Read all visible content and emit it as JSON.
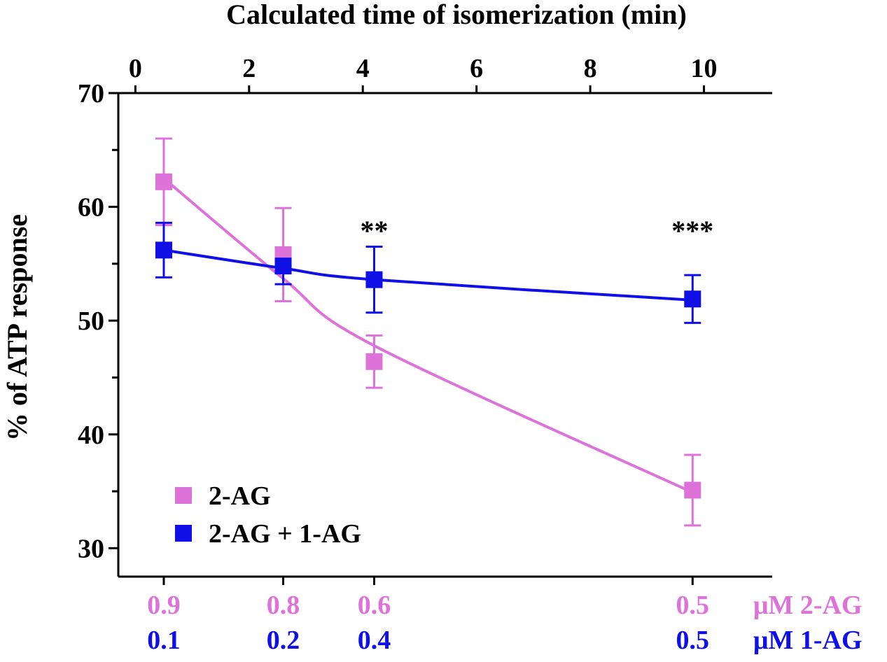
{
  "chart_data": {
    "type": "scatter",
    "title": "Calculated time of isomerization (min)",
    "ylabel": "% of ATP response",
    "xlim": [
      -0.3,
      11.2
    ],
    "ylim": [
      27.5,
      70
    ],
    "x_ticks": [
      "0",
      "2",
      "4",
      "6",
      "8",
      "10"
    ],
    "x_tick_values": [
      0,
      2,
      4,
      6,
      8,
      10
    ],
    "y_ticks": [
      "30",
      "40",
      "50",
      "60",
      "70"
    ],
    "y_tick_values": [
      30,
      40,
      50,
      60,
      70
    ],
    "y_minor_ticks": [
      35,
      45,
      55,
      65
    ],
    "x": [
      0.5,
      2.6,
      4.2,
      9.8
    ],
    "series": [
      {
        "name": "2-AG",
        "color": "#DD72D8",
        "values": [
          62.2,
          55.8,
          46.4,
          35.1
        ],
        "errors": [
          3.8,
          4.1,
          2.3,
          3.1
        ],
        "fit_curve": [
          62.5,
          53.7,
          47.8,
          34.9
        ]
      },
      {
        "name": "2-AG + 1-AG",
        "color": "#1010E6",
        "values": [
          56.2,
          54.8,
          53.6,
          51.9
        ],
        "errors": [
          2.4,
          1.6,
          2.9,
          2.1
        ],
        "fit_curve": [
          56.2,
          54.6,
          53.6,
          51.8
        ]
      }
    ],
    "annotations": [
      {
        "text": "**",
        "x": 4.2,
        "y": 58.2
      },
      {
        "text": "***",
        "x": 9.8,
        "y": 58.2
      }
    ],
    "legend": {
      "placement": "bottom-left",
      "entries": [
        "2-AG",
        "2-AG + 1-AG"
      ]
    },
    "concentration_rows": [
      {
        "labels": [
          "0.9",
          "0.8",
          "0.6",
          "0.5"
        ],
        "unit": "μM 2-AG",
        "color": "#DD72D8"
      },
      {
        "labels": [
          "0.1",
          "0.2",
          "0.4",
          "0.5"
        ],
        "unit": "μM 1-AG",
        "color": "#1010E6"
      }
    ]
  }
}
